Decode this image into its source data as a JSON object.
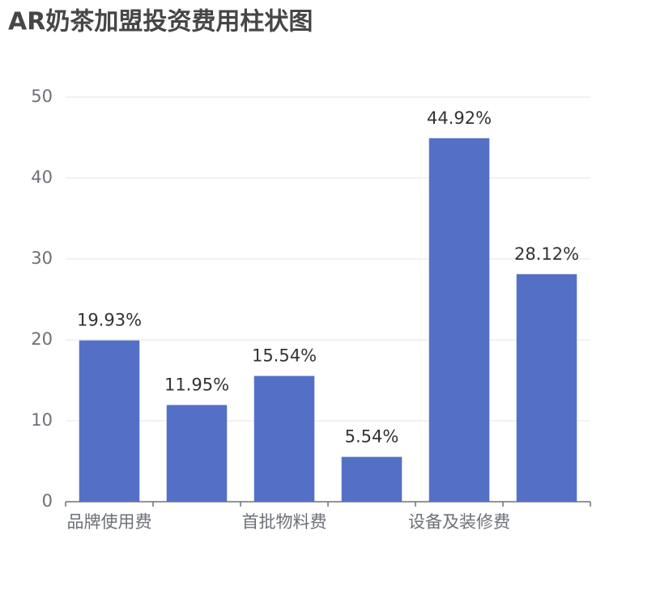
{
  "chart_data": {
    "type": "bar",
    "title": "AR奶茶加盟投资费用柱状图",
    "categories": [
      "品牌使用费",
      null,
      "首批物料费",
      null,
      "设备及装修费",
      null
    ],
    "values": [
      19.93,
      11.95,
      15.54,
      5.54,
      44.92,
      28.12
    ],
    "value_labels": [
      "19.93%",
      "11.95%",
      "15.54%",
      "5.54%",
      "44.92%",
      "28.12%"
    ],
    "color": "#5470c6",
    "ylim": [
      0,
      50
    ],
    "yticks": [
      0,
      10,
      20,
      30,
      40,
      50
    ],
    "grid": true
  }
}
